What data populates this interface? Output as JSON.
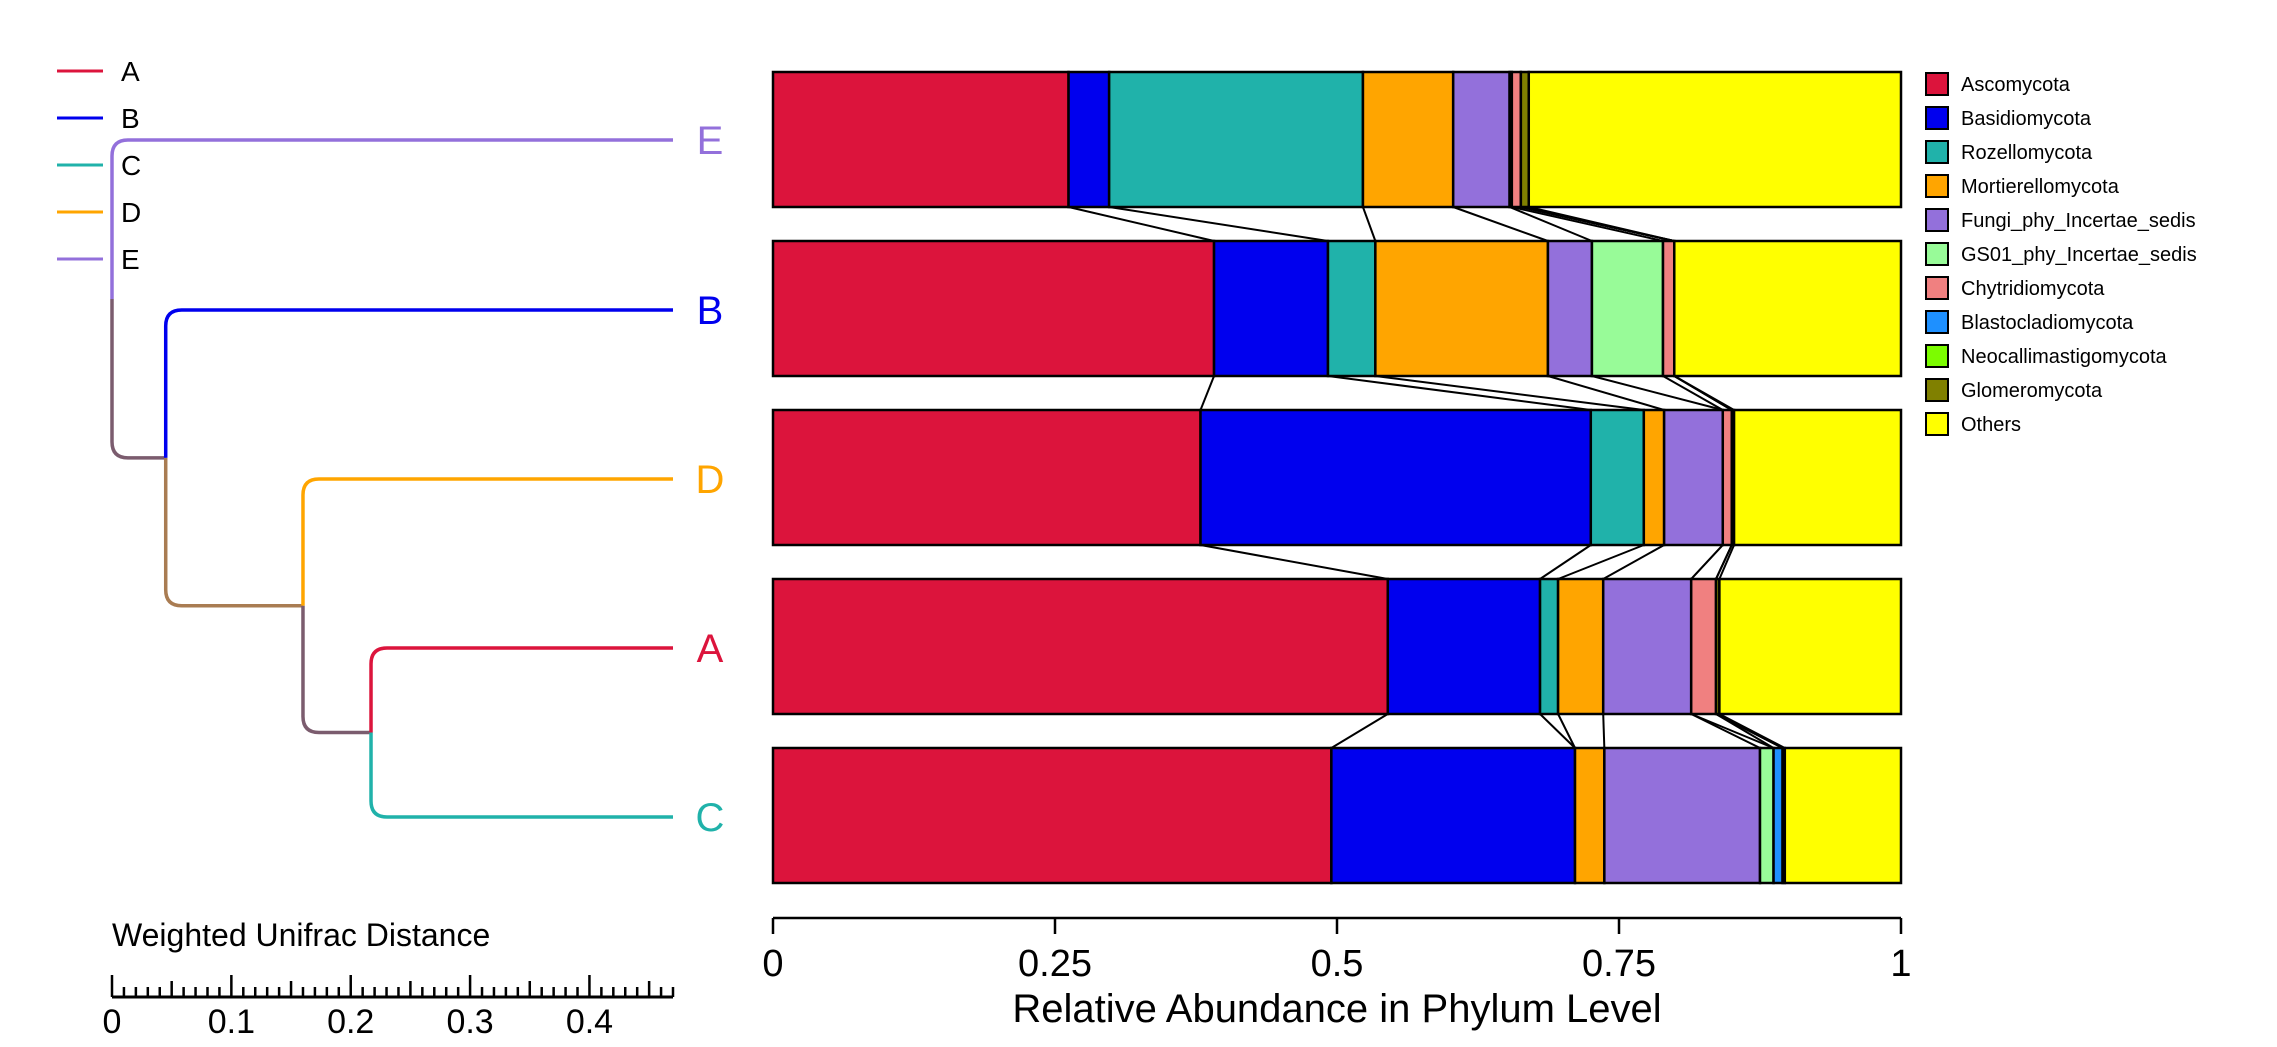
{
  "chart_data": {
    "type": "bar",
    "orientation": "horizontal",
    "stacked": true,
    "xlabel": "Relative Abundance in Phylum Level",
    "xlim": [
      0,
      1
    ],
    "xticks": [
      "0",
      "0.25",
      "0.5",
      "0.75",
      "1"
    ],
    "samples": [
      "E",
      "B",
      "D",
      "A",
      "C"
    ],
    "series": [
      {
        "name": "Ascomycota",
        "color": "#DC143C",
        "values": [
          0.262,
          0.391,
          0.379,
          0.545,
          0.495
        ]
      },
      {
        "name": "Basidiomycota",
        "color": "#0000EE",
        "values": [
          0.036,
          0.101,
          0.346,
          0.135,
          0.216
        ]
      },
      {
        "name": "Rozellomycota",
        "color": "#20B2AA",
        "values": [
          0.225,
          0.042,
          0.047,
          0.016,
          0.0
        ]
      },
      {
        "name": "Mortierellomycota",
        "color": "#FFA500",
        "values": [
          0.08,
          0.153,
          0.018,
          0.04,
          0.026
        ]
      },
      {
        "name": "Fungi_phy_Incertae_sedis",
        "color": "#9370DB",
        "values": [
          0.05,
          0.039,
          0.052,
          0.078,
          0.138
        ]
      },
      {
        "name": "GS01_phy_Incertae_sedis",
        "color": "#98FB98",
        "values": [
          0.002,
          0.063,
          0.0,
          0.0,
          0.012
        ]
      },
      {
        "name": "Chytridiomycota",
        "color": "#F08080",
        "values": [
          0.008,
          0.01,
          0.008,
          0.022,
          0.0
        ]
      },
      {
        "name": "Blastocladiomycota",
        "color": "#1E90FF",
        "values": [
          0.0,
          0.0,
          0.0,
          0.0,
          0.008
        ]
      },
      {
        "name": "Neocallimastigomycota",
        "color": "#7CFC00",
        "values": [
          0.0,
          0.0,
          0.0,
          0.0,
          0.0
        ]
      },
      {
        "name": "Glomeromycota",
        "color": "#808000",
        "values": [
          0.007,
          0.0,
          0.002,
          0.003,
          0.002
        ]
      },
      {
        "name": "Others",
        "color": "#FFFF00",
        "values": [
          0.33,
          0.201,
          0.148,
          0.161,
          0.103
        ]
      }
    ],
    "tree": {
      "scale_label": "Weighted Unifrac Distance",
      "scale_ticks": [
        "0",
        "0.1",
        "0.2",
        "0.3",
        "0.4"
      ],
      "scale_max": 0.47,
      "legend": [
        {
          "label": "A",
          "color": "#DC143C"
        },
        {
          "label": "B",
          "color": "#0000EE"
        },
        {
          "label": "C",
          "color": "#20B2AA"
        },
        {
          "label": "D",
          "color": "#FFA500"
        },
        {
          "label": "E",
          "color": "#9370DB"
        }
      ],
      "node_heights": {
        "root": 0.0,
        "bdac": 0.045,
        "dac": 0.16,
        "ac": 0.217
      },
      "branch_colors": {
        "root_bdac": "#7B5C6E",
        "bdac_dac": "#A97C52",
        "dac_ac": "#7B5C6E"
      }
    }
  }
}
